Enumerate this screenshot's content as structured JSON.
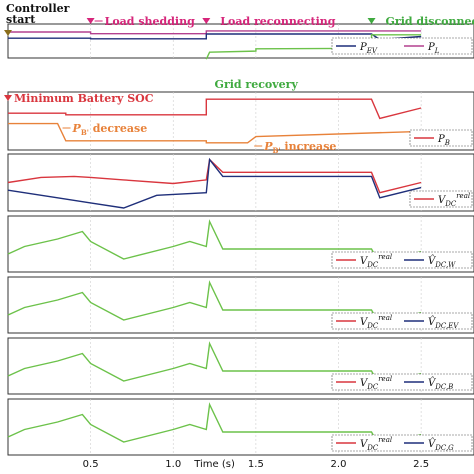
{
  "chart_data": {
    "type": "line",
    "xlabel": "Time (s)",
    "xlim": [
      0,
      2.5
    ],
    "xticks": [
      "0.5",
      "1.0",
      "1.5",
      "2.0",
      "2.5"
    ],
    "xtick_values": [
      0.5,
      1.0,
      1.5,
      2.0,
      2.5
    ],
    "events": [
      {
        "t": 0,
        "label": "Controller start",
        "color": "#8a6d1a"
      },
      {
        "t": 0.5,
        "label": "Load shedding",
        "color": "#d6257a"
      },
      {
        "t": 1.2,
        "label": "Load reconnecting",
        "color": "#d6257a"
      },
      {
        "t": 2.2,
        "label": "Grid disconnection",
        "color": "#3faa3f"
      }
    ],
    "panels": [
      {
        "id": "power-ev-load",
        "legend": [
          {
            "sym": "P",
            "sub": "EV",
            "color": "#1f2f7a"
          },
          {
            "sym": "P",
            "sub": "L",
            "color": "#b4408f"
          }
        ],
        "annotations": [
          {
            "text": "Grid recovery",
            "color": "#3faa3f"
          }
        ],
        "series": [
          {
            "color": "#b4408f",
            "x": [
              0,
              0.5,
              0.5,
              1.2,
              1.2,
              2.5
            ],
            "y": [
              0.82,
              0.82,
              0.76,
              0.76,
              0.86,
              0.86
            ]
          },
          {
            "color": "#1f2f7a",
            "x": [
              0,
              0.5,
              0.5,
              1.2,
              1.2,
              2.2,
              2.25,
              2.5
            ],
            "y": [
              0.6,
              0.6,
              0.58,
              0.58,
              0.75,
              0.75,
              0.55,
              0.66
            ]
          },
          {
            "color": "#6cc24a",
            "x": [
              1.2,
              1.22,
              1.5,
              1.5,
              2.2,
              2.2,
              2.5
            ],
            "y": [
              -0.15,
              0.1,
              0.14,
              0.22,
              0.24,
              0.72,
              0.72
            ]
          }
        ]
      },
      {
        "id": "power-battery",
        "legend": [
          {
            "sym": "P",
            "sub": "B",
            "color": "#d9363e"
          }
        ],
        "annotations": [
          {
            "text": "Minimum Battery SOC",
            "color": "#d9363e"
          },
          {
            "text": "decrease",
            "prefix_sym": "P",
            "prefix_sub": "B'",
            "color": "#e8823a"
          },
          {
            "text": "increase",
            "prefix_sym": "P",
            "prefix_sub": "B'",
            "color": "#e8823a"
          }
        ],
        "series": [
          {
            "color": "#d9363e",
            "x": [
              0,
              0.35,
              0.35,
              1.2,
              1.2,
              2.2,
              2.25,
              2.5
            ],
            "y": [
              0.65,
              0.65,
              0.62,
              0.62,
              0.92,
              0.92,
              0.55,
              0.75
            ]
          },
          {
            "color": "#e8823a",
            "x": [
              0,
              0.3,
              0.35,
              1.2,
              1.2,
              1.45,
              1.5,
              2.5
            ],
            "y": [
              0.45,
              0.45,
              0.12,
              0.12,
              0.08,
              0.08,
              0.2,
              0.3
            ]
          }
        ]
      },
      {
        "id": "dc-voltage-1",
        "legend": [
          {
            "sym": "V",
            "sub": "DC",
            "sup": "real",
            "color": "#d9363e"
          }
        ],
        "series": [
          {
            "color": "#d9363e",
            "x": [
              0,
              0.2,
              0.4,
              0.5,
              0.7,
              1.0,
              1.2,
              1.22,
              1.3,
              1.6,
              2.2,
              2.25,
              2.5
            ],
            "y": [
              0.5,
              0.6,
              0.62,
              0.6,
              0.55,
              0.48,
              0.55,
              0.95,
              0.7,
              0.7,
              0.7,
              0.3,
              0.5
            ]
          },
          {
            "color": "#1f2f7a",
            "x": [
              0,
              0.3,
              0.5,
              0.7,
              0.9,
              1.2,
              1.22,
              1.3,
              1.6,
              2.2,
              2.25,
              2.5
            ],
            "y": [
              0.35,
              0.2,
              0.1,
              0.0,
              0.25,
              0.3,
              0.95,
              0.62,
              0.62,
              0.62,
              0.2,
              0.4
            ]
          }
        ]
      },
      {
        "id": "dc-voltage-w",
        "legend": [
          {
            "sym": "V",
            "sub": "DC",
            "sup": "real",
            "color": "#d9363e"
          },
          {
            "sym": "V̂",
            "sub": "DC,W",
            "color": "#1f2f7a"
          }
        ],
        "series": [
          {
            "color": "#6cc24a",
            "x": [
              0,
              0.1,
              0.3,
              0.45,
              0.5,
              0.7,
              1.0,
              1.1,
              1.2,
              1.22,
              1.3,
              2.2,
              2.25,
              2.5
            ],
            "y": [
              0.3,
              0.45,
              0.6,
              0.75,
              0.55,
              0.2,
              0.45,
              0.55,
              0.45,
              0.95,
              0.4,
              0.4,
              0.1,
              0.35
            ]
          }
        ]
      },
      {
        "id": "dc-voltage-ev",
        "legend": [
          {
            "sym": "V",
            "sub": "DC",
            "sup": "real",
            "color": "#d9363e"
          },
          {
            "sym": "V̂",
            "sub": "DC,EV",
            "color": "#1f2f7a"
          }
        ],
        "series": [
          {
            "color": "#6cc24a",
            "x": [
              0,
              0.1,
              0.3,
              0.45,
              0.5,
              0.7,
              1.0,
              1.1,
              1.2,
              1.22,
              1.3,
              2.2,
              2.25,
              2.5
            ],
            "y": [
              0.3,
              0.45,
              0.6,
              0.75,
              0.55,
              0.2,
              0.45,
              0.55,
              0.45,
              0.95,
              0.4,
              0.4,
              0.1,
              0.35
            ]
          }
        ]
      },
      {
        "id": "dc-voltage-b",
        "legend": [
          {
            "sym": "V",
            "sub": "DC",
            "sup": "real",
            "color": "#d9363e"
          },
          {
            "sym": "V̂",
            "sub": "DC,B",
            "color": "#1f2f7a"
          }
        ],
        "series": [
          {
            "color": "#6cc24a",
            "x": [
              0,
              0.1,
              0.3,
              0.45,
              0.5,
              0.7,
              1.0,
              1.1,
              1.2,
              1.22,
              1.3,
              2.2,
              2.25,
              2.5
            ],
            "y": [
              0.3,
              0.45,
              0.6,
              0.75,
              0.55,
              0.2,
              0.45,
              0.55,
              0.45,
              0.95,
              0.4,
              0.4,
              0.1,
              0.35
            ]
          }
        ]
      },
      {
        "id": "dc-voltage-g",
        "legend": [
          {
            "sym": "V",
            "sub": "DC",
            "sup": "real",
            "color": "#d9363e"
          },
          {
            "sym": "V̂",
            "sub": "DC,G",
            "color": "#1f2f7a"
          }
        ],
        "series": [
          {
            "color": "#6cc24a",
            "x": [
              0,
              0.1,
              0.3,
              0.45,
              0.5,
              0.7,
              1.0,
              1.1,
              1.2,
              1.22,
              1.3,
              2.2,
              2.25,
              2.5
            ],
            "y": [
              0.3,
              0.45,
              0.6,
              0.75,
              0.55,
              0.2,
              0.45,
              0.55,
              0.45,
              0.95,
              0.4,
              0.4,
              0.1,
              0.35
            ]
          }
        ]
      }
    ]
  }
}
